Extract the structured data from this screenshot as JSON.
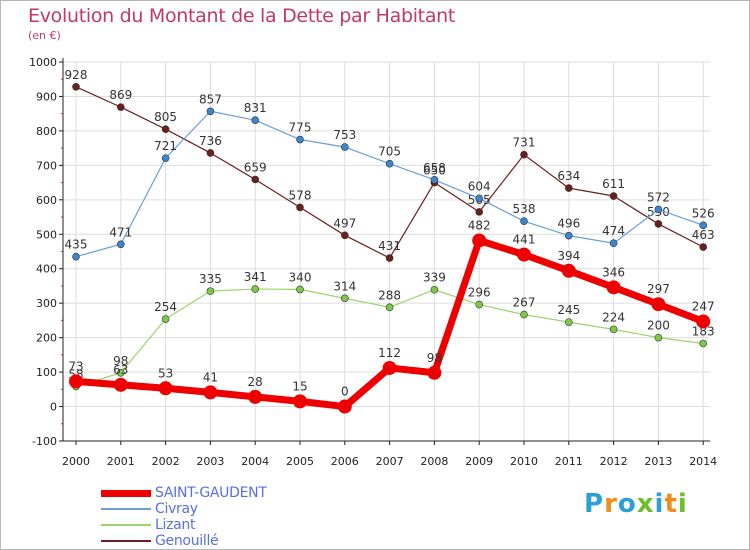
{
  "colors": {
    "title": "#c2386a",
    "grid": "#dddddd",
    "axis": "#222222",
    "legend_text": "#5a6fe0"
  },
  "logo": {
    "text": "Proxiti",
    "letter_colors": [
      "#2aa0d6",
      "#f28c1c",
      "#2aa0d6",
      "#6cbf2a",
      "#2aa0d6",
      "#f28c1c",
      "#6cbf2a"
    ]
  },
  "chart_data": {
    "type": "line",
    "title": "Evolution du Montant de la Dette par Habitant",
    "subtitle": "(en €)",
    "xlabel": "",
    "ylabel": "",
    "ylim": [
      -100,
      1000
    ],
    "yticks": [
      -100,
      0,
      100,
      200,
      300,
      400,
      500,
      600,
      700,
      800,
      900,
      1000
    ],
    "grid": true,
    "legend_position": "bottom-left",
    "categories": [
      "2000",
      "2001",
      "2002",
      "2003",
      "2004",
      "2005",
      "2006",
      "2007",
      "2008",
      "2009",
      "2010",
      "2011",
      "2012",
      "2013",
      "2014"
    ],
    "series": [
      {
        "name": "Genouillé",
        "color": "#6b1f1f",
        "marker_color": "#6b1f1f",
        "width": 1.2,
        "marker": 3.5,
        "values": [
          928,
          869,
          805,
          736,
          659,
          578,
          497,
          431,
          650,
          565,
          731,
          634,
          611,
          530,
          463
        ]
      },
      {
        "name": "Civray",
        "color": "#6b9ed8",
        "marker_color": "#3a86cf",
        "width": 1.2,
        "marker": 3.5,
        "values": [
          435,
          471,
          721,
          857,
          831,
          775,
          753,
          705,
          658,
          604,
          538,
          496,
          474,
          572,
          526
        ]
      },
      {
        "name": "Lizant",
        "color": "#9bd46b",
        "marker_color": "#7cc94a",
        "width": 1.2,
        "marker": 3.5,
        "values": [
          58,
          98,
          254,
          335,
          341,
          340,
          314,
          288,
          339,
          296,
          267,
          245,
          224,
          200,
          183
        ]
      },
      {
        "name": "SAINT-GAUDENT",
        "color": "#ee0000",
        "marker_color": "#ee0000",
        "width": 7,
        "marker": 7,
        "values": [
          73,
          63,
          53,
          41,
          28,
          15,
          0,
          112,
          98,
          482,
          441,
          394,
          346,
          297,
          247
        ]
      }
    ],
    "legend_order": [
      "SAINT-GAUDENT",
      "Civray",
      "Lizant",
      "Genouillé"
    ]
  }
}
